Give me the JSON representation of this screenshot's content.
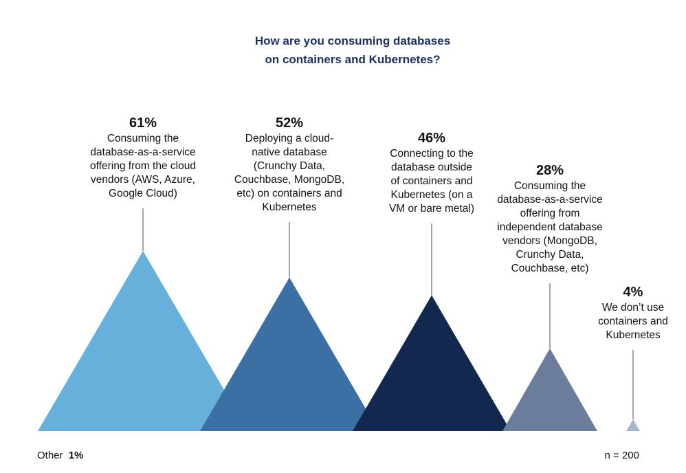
{
  "chart_data": {
    "type": "bar",
    "title": "How are you consuming databases on containers and Kubernetes?",
    "title_lines": [
      "How are you consuming databases",
      "on containers and Kubernetes?"
    ],
    "unit": "%",
    "categories": [
      "Consuming the database-as-a-service offering from the cloud vendors (AWS, Azure, Google Cloud)",
      "Deploying a cloud-native database (Crunchy Data, Couchbase, MongoDB, etc) on containers and Kubernetes",
      "Connecting to the database outside of containers and Kubernetes (on a VM or bare metal)",
      "Consuming the database-as-a-service offering from independent database vendors (MongoDB, Crunchy Data, Couchbase, etc)",
      "We don’t use containers and Kubernetes"
    ],
    "values": [
      61,
      52,
      46,
      28,
      4
    ],
    "value_labels": [
      "61%",
      "52%",
      "46%",
      "28%",
      "4%"
    ],
    "label_lines": [
      [
        "Consuming the",
        "database-as-a-service",
        "offering from the cloud",
        "vendors (AWS, Azure,",
        "Google Cloud)"
      ],
      [
        "Deploying a cloud-",
        "native database",
        "(Crunchy Data,",
        "Couchbase, MongoDB,",
        "etc) on containers and",
        "Kubernetes"
      ],
      [
        "Connecting to the",
        "database outside",
        "of containers and",
        "Kubernetes (on a",
        "VM or bare metal)"
      ],
      [
        "Consuming the",
        "database-as-a-service",
        "offering from",
        "independent database",
        "vendors (MongoDB,",
        "Crunchy Data,",
        "Couchbase, etc)"
      ],
      [
        "We don’t use",
        "containers and",
        "Kubernetes"
      ]
    ],
    "colors": [
      "#66b0db",
      "#3c70a4",
      "#13284e",
      "#6c7c9b",
      "#a9b5cf"
    ],
    "ylim": [
      0,
      61
    ],
    "grid": false,
    "legend": "none",
    "other_label": "Other",
    "other_value": "1%",
    "sample_note": "n = 200"
  }
}
